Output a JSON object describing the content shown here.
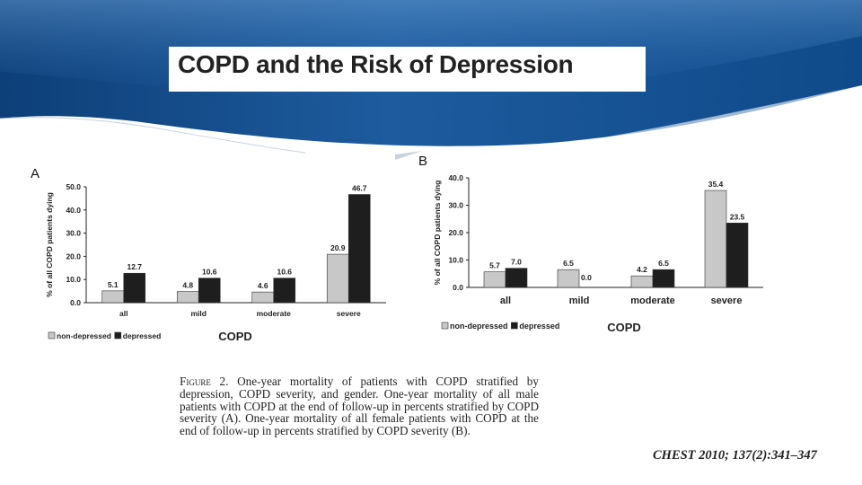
{
  "slide": {
    "title": "COPD and the Risk of Depression",
    "colors": {
      "banner_dark": "#0d3f78",
      "banner_mid": "#1d5b9e",
      "banner_light": "#4a86c4",
      "non_depressed": "#c8c8c8",
      "depressed": "#1e1e1e"
    }
  },
  "chart_data": [
    {
      "type": "bar",
      "panel_label": "A",
      "title": "",
      "ylabel": "% of all COPD patients dying",
      "xlabel": "COPD",
      "ylim": [
        0,
        50
      ],
      "yticks": [
        "0.0",
        "10.0",
        "20.0",
        "30.0",
        "40.0",
        "50.0"
      ],
      "categories": [
        "all",
        "mild",
        "moderate",
        "severe"
      ],
      "series": [
        {
          "name": "non-depressed",
          "values": [
            5.1,
            4.8,
            4.6,
            20.9
          ],
          "labels": [
            "5.1",
            "4.8",
            "4.6",
            "20.9"
          ]
        },
        {
          "name": "depressed",
          "values": [
            12.7,
            10.6,
            10.6,
            46.7
          ],
          "labels": [
            "12.7",
            "10.6",
            "10.6",
            "46.7"
          ]
        }
      ],
      "legend_position": "bottom-left"
    },
    {
      "type": "bar",
      "panel_label": "B",
      "title": "",
      "ylabel": "% of all COPD patients dying",
      "xlabel": "COPD",
      "ylim": [
        0,
        40
      ],
      "yticks": [
        "0.0",
        "10.0",
        "20.0",
        "30.0",
        "40.0"
      ],
      "categories": [
        "all",
        "mild",
        "moderate",
        "severe"
      ],
      "series": [
        {
          "name": "non-depressed",
          "values": [
            5.7,
            6.5,
            4.2,
            35.4
          ],
          "labels": [
            "5.7",
            "6.5",
            "4.2",
            "35.4"
          ]
        },
        {
          "name": "depressed",
          "values": [
            7.0,
            0.0,
            6.5,
            23.5
          ],
          "labels": [
            "7.0",
            "0.0",
            "6.5",
            "23.5"
          ]
        }
      ],
      "legend_position": "bottom-left"
    }
  ],
  "caption": {
    "figure_label": "Figure 2.",
    "text": "One-year mortality of patients with COPD stratified by depression, COPD severity, and gender. One-year mortality of all male patients with COPD at the end of follow-up in percents stratified by COPD severity (A). One-year mortality of all female patients with COPD at the end of follow-up in percents stratified by COPD severity (B)."
  },
  "citation": "CHEST 2010; 137(2):341–347"
}
